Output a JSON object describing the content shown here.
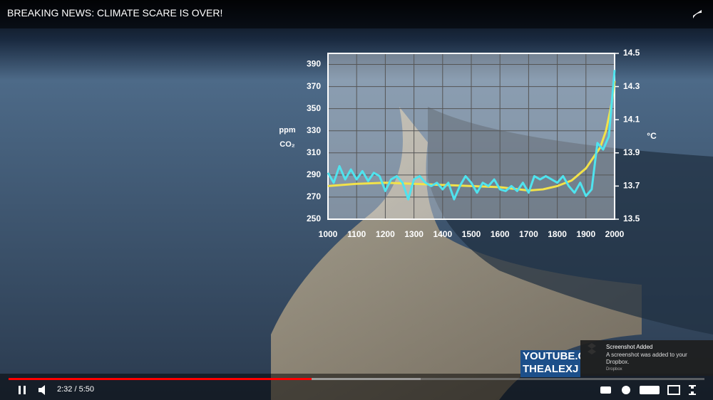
{
  "video": {
    "title": "BREAKING NEWS: CLIMATE SCARE IS OVER!",
    "time": "2:32 / 5:50",
    "watermark": [
      "YOUTUBE.C",
      "THEALEXJ"
    ]
  },
  "notification": {
    "title": "Screenshot Added",
    "body": "A screenshot was added to your Dropbox.",
    "source": "Dropbox"
  },
  "chart_data": {
    "type": "line",
    "y_label": [
      "ppm",
      "CO₂"
    ],
    "y2_label": "°C",
    "xlim": [
      1000,
      2000
    ],
    "xticks": [
      1000,
      1100,
      1200,
      1300,
      1400,
      1500,
      1600,
      1700,
      1800,
      1900,
      2000
    ],
    "ylim": [
      250,
      400
    ],
    "yticks": [
      250,
      270,
      290,
      310,
      330,
      350,
      370,
      390
    ],
    "y2lim": [
      13.5,
      14.5
    ],
    "y2ticks": [
      13.5,
      13.7,
      13.9,
      14.1,
      14.3,
      14.5
    ],
    "grid": true,
    "series": [
      {
        "color": "#f2e24a",
        "x": [
          1000,
          1100,
          1200,
          1300,
          1400,
          1500,
          1600,
          1700,
          1750,
          1800,
          1850,
          1900,
          1950,
          1970,
          1990,
          2000
        ],
        "values": [
          280,
          282,
          283,
          282,
          281,
          280,
          279,
          276,
          277,
          280,
          285,
          296,
          315,
          330,
          355,
          375
        ]
      },
      {
        "color": "#4fe3ee",
        "axis": "y2",
        "x": [
          1000,
          1020,
          1040,
          1060,
          1080,
          1100,
          1120,
          1140,
          1160,
          1180,
          1200,
          1220,
          1240,
          1260,
          1280,
          1300,
          1320,
          1340,
          1360,
          1380,
          1400,
          1420,
          1440,
          1460,
          1480,
          1500,
          1520,
          1540,
          1560,
          1580,
          1600,
          1620,
          1640,
          1660,
          1680,
          1700,
          1720,
          1740,
          1760,
          1780,
          1800,
          1820,
          1840,
          1860,
          1880,
          1900,
          1920,
          1940,
          1960,
          1980,
          2000
        ],
        "values": [
          13.78,
          13.72,
          13.82,
          13.74,
          13.8,
          13.74,
          13.79,
          13.73,
          13.78,
          13.76,
          13.67,
          13.74,
          13.76,
          13.72,
          13.62,
          13.74,
          13.76,
          13.72,
          13.7,
          13.72,
          13.68,
          13.72,
          13.62,
          13.7,
          13.76,
          13.72,
          13.66,
          13.72,
          13.7,
          13.74,
          13.68,
          13.67,
          13.7,
          13.67,
          13.72,
          13.66,
          13.76,
          13.74,
          13.76,
          13.74,
          13.72,
          13.76,
          13.7,
          13.66,
          13.72,
          13.64,
          13.68,
          13.96,
          13.92,
          14.0,
          14.4
        ]
      }
    ]
  }
}
